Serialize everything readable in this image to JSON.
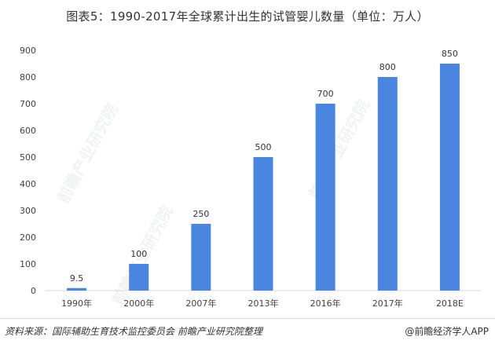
{
  "title": "图表5：1990-2017年全球累计出生的试管婴儿数量（单位：万人）",
  "source": "资料来源：国际辅助生育技术监控委员会 前瞻产业研究院整理",
  "credit": "@前瞻经济学人APP",
  "watermark": "前瞻产业研究院",
  "colors": {
    "bar": "#4a86e0",
    "grid": "#d9d9d9",
    "text": "#404040"
  },
  "chart_data": {
    "type": "bar",
    "categories": [
      "1990年",
      "2000年",
      "2007年",
      "2013年",
      "2016年",
      "2017年",
      "2018E"
    ],
    "values": [
      9.5,
      100,
      250,
      500,
      700,
      800,
      850
    ],
    "data_labels": [
      "9.5",
      "100",
      "250",
      "500",
      "700",
      "800",
      "850"
    ],
    "ylim": [
      0,
      900
    ],
    "yticks": [
      0,
      100,
      200,
      300,
      400,
      500,
      600,
      700,
      800,
      900
    ],
    "grid": false,
    "legend": "none"
  }
}
